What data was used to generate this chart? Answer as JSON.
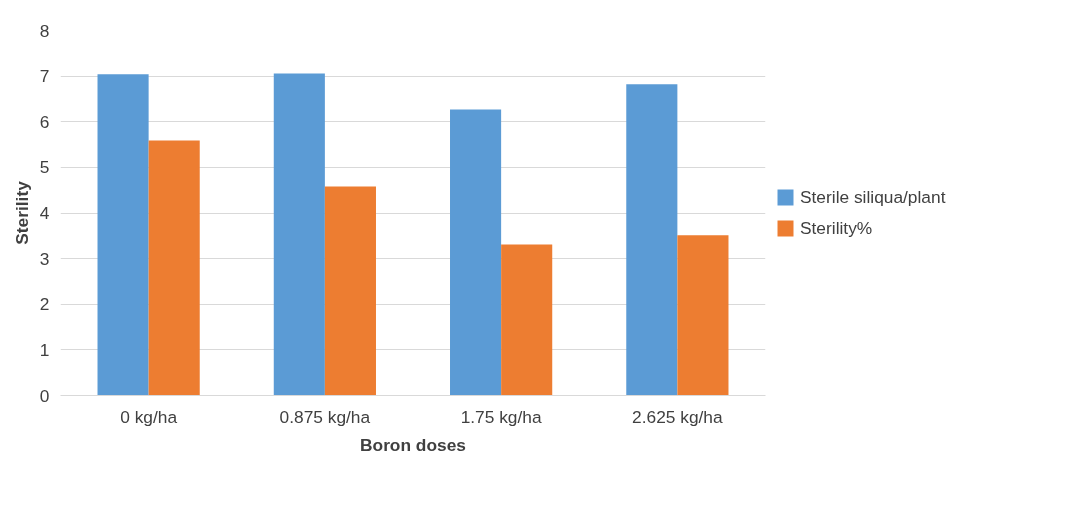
{
  "chart_data": {
    "type": "bar",
    "xlabel": "Boron doses",
    "ylabel": "Sterility",
    "categories": [
      "0 kg/ha",
      "0.875 kg/ha",
      "1.75 kg/ha",
      "2.625 kg/ha"
    ],
    "series": [
      {
        "name": "Sterile siliqua/plant",
        "color": "#5b9bd5",
        "values": [
          7.04,
          7.06,
          6.27,
          6.82
        ]
      },
      {
        "name": "Sterility%",
        "color": "#ed7d31",
        "values": [
          5.59,
          4.58,
          3.31,
          3.51
        ]
      }
    ],
    "ylim": [
      0,
      8
    ],
    "yticks": [
      0,
      1,
      2,
      3,
      4,
      5,
      6,
      7,
      8
    ],
    "grid": "y",
    "legend": "right"
  }
}
